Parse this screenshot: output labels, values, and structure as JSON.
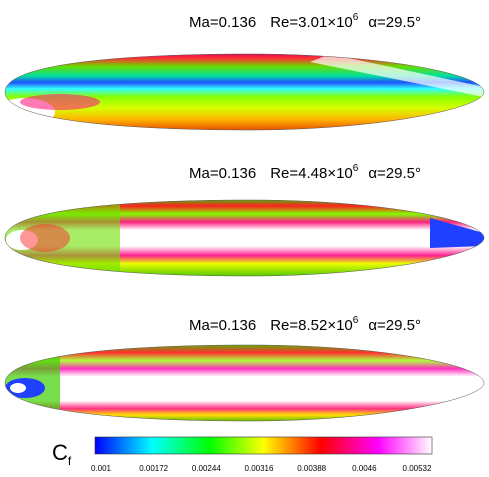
{
  "panels": [
    {
      "ma": "Ma=0.136",
      "re": "Re=3.01×10",
      "re_exp": "6",
      "alpha": "α=29.5°"
    },
    {
      "ma": "Ma=0.136",
      "re": "Re=4.48×10",
      "re_exp": "6",
      "alpha": "α=29.5°"
    },
    {
      "ma": "Ma=0.136",
      "re": "Re=8.52×10",
      "re_exp": "6",
      "alpha": "α=29.5°"
    }
  ],
  "colorbar": {
    "symbol": "C",
    "subscript": "f",
    "ticks": [
      "0.001",
      "0.00172",
      "0.00244",
      "0.00316",
      "0.00388",
      "0.0046",
      "0.00532"
    ]
  }
}
